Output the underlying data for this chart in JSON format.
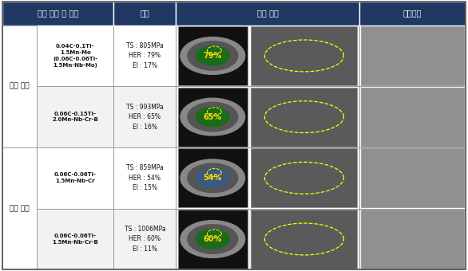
{
  "header_bg": "#1F3864",
  "header_text_color": "#FFFFFF",
  "header_labels": [
    "강화 기구 및 성분",
    "재질",
    "파괴 거동",
    "미세조직"
  ],
  "border_color": "#888888",
  "rows": [
    {
      "section": "석출 강화",
      "composition": "0.04C-0.1Ti-\n1.5Mn-Mo\n(0.06C-0.06Ti-\n1.5Mn-Nb-Mo)",
      "ts": "TS : 805MPa",
      "her": "HER : 79%",
      "el": "El : 17%",
      "her_value": "79%",
      "circle_color": "#1a6b1a",
      "row_bg": "#FFFFFF"
    },
    {
      "section": "석출 강화",
      "composition": "0.06C-0.15Ti-\n2.0Mn-Nb-Cr-B",
      "ts": "TS : 993MPa",
      "her": "HER : 65%",
      "el": "El : 16%",
      "her_value": "65%",
      "circle_color": "#1a6b1a",
      "row_bg": "#F0F0F0"
    },
    {
      "section": "변태 강화",
      "composition": "0.06C-0.06Ti-\n1.5Mn-Nb-Cr",
      "ts": "TS : 859MPa",
      "her": "HER : 54%",
      "el": "El : 15%",
      "her_value": "54%",
      "circle_color": "#3a5a80",
      "row_bg": "#FFFFFF"
    },
    {
      "section": "변태 강화",
      "composition": "0.06C-0.06Ti-\n1.5Mn-Nb-Cr-B",
      "ts": "TS : 1006MPa",
      "her": "HER : 60%",
      "el": "El : 11%",
      "her_value": "60%",
      "circle_color": "#1a6b1a",
      "row_bg": "#F0F0F0"
    }
  ],
  "col_props": [
    0.075,
    0.165,
    0.135,
    0.395,
    0.23
  ],
  "figsize": [
    5.86,
    3.4
  ],
  "dpi": 100
}
